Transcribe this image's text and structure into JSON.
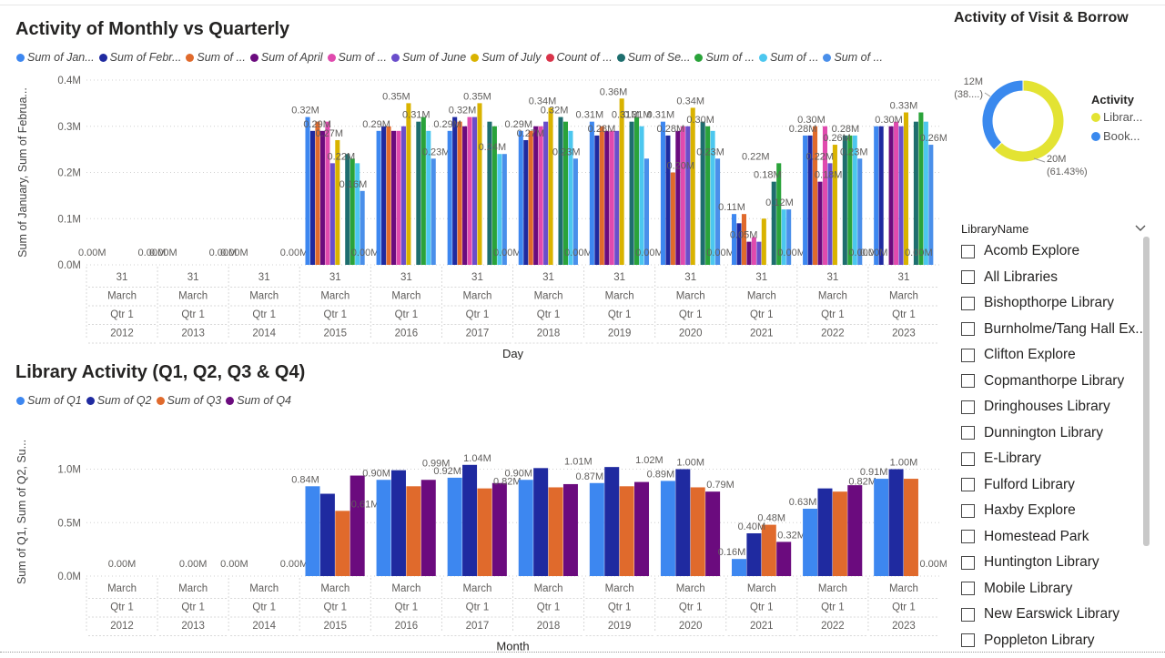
{
  "chart1": {
    "title": "Activity of Monthly vs Quarterly",
    "legend": [
      {
        "name": "Sum of Jan...",
        "color": "#3d87f0"
      },
      {
        "name": "Sum of Febr...",
        "color": "#1f2aa0"
      },
      {
        "name": "Sum of ...",
        "color": "#e06a2c"
      },
      {
        "name": "Sum of April",
        "color": "#6b0b7e"
      },
      {
        "name": "Sum of ...",
        "color": "#e04aae"
      },
      {
        "name": "Sum of June",
        "color": "#6a4ecb"
      },
      {
        "name": "Sum of July",
        "color": "#d9b300"
      },
      {
        "name": "Count of ...",
        "color": "#d9344a"
      },
      {
        "name": "Sum of Se...",
        "color": "#1e6e6e"
      },
      {
        "name": "Sum of ...",
        "color": "#2aa33a"
      },
      {
        "name": "Sum of ...",
        "color": "#4cc7ef"
      },
      {
        "name": "Sum of ...",
        "color": "#4a8fea"
      }
    ],
    "y_axis_title": "Sum of January, Sum of Februa...",
    "x_axis_title": "Day",
    "y_ticks": [
      "0.0M",
      "0.1M",
      "0.2M",
      "0.3M",
      "0.4M"
    ]
  },
  "chart2": {
    "title": "Library Activity (Q1, Q2, Q3 & Q4)",
    "legend": [
      {
        "name": "Sum of Q1",
        "color": "#3d87f0"
      },
      {
        "name": "Sum of Q2",
        "color": "#1f2aa0"
      },
      {
        "name": "Sum of Q3",
        "color": "#e06a2c"
      },
      {
        "name": "Sum of Q4",
        "color": "#6b0b7e"
      }
    ],
    "y_axis_title": "Sum of Q1, Sum of Q2, Su...",
    "x_axis_title": "Month",
    "y_ticks": [
      "0.0M",
      "0.5M",
      "1.0M"
    ]
  },
  "donut": {
    "title": "Activity of Visit & Borrow",
    "legend_title": "Activity",
    "label_blue_value": "12M",
    "label_blue_pct": "(38....)",
    "label_yellow_value": "20M",
    "label_yellow_pct": "(61.43%)",
    "legend": [
      {
        "name": "Librar...",
        "color": "#e3e333"
      },
      {
        "name": "Book...",
        "color": "#3a89ee"
      }
    ]
  },
  "slicer": {
    "title": "LibraryName",
    "items": [
      "Acomb Explore",
      "All Libraries",
      "Bishopthorpe Library",
      "Burnholme/Tang Hall Ex...",
      "Clifton Explore",
      "Copmanthorpe Library",
      "Dringhouses Library",
      "Dunnington Library",
      "E-Library",
      "Fulford Library",
      "Haxby Explore",
      "Homestead Park",
      "Huntington Library",
      "Mobile Library",
      "New Earswick Library",
      "Poppleton Library"
    ]
  },
  "chart_data": [
    {
      "type": "bar",
      "title": "Activity of Monthly vs Quarterly",
      "xlabel": "Day",
      "ylabel": "Sum of January, Sum of Februa...",
      "ylim": [
        0,
        0.4
      ],
      "unit": "M",
      "x_levels": {
        "day": "31",
        "month": "March",
        "quarter": "Qtr 1"
      },
      "categories": [
        "2012",
        "2013",
        "2014",
        "2015",
        "2016",
        "2017",
        "2018",
        "2019",
        "2020",
        "2021",
        "2022",
        "2023"
      ],
      "series": [
        {
          "name": "Sum of Jan...",
          "values": [
            0,
            0,
            0,
            0.32,
            0.29,
            0.29,
            0.29,
            0.31,
            0.31,
            0.11,
            0.28,
            0.3
          ]
        },
        {
          "name": "Sum of Febr...",
          "values": [
            0,
            0,
            0,
            0.29,
            0.3,
            0.32,
            0.27,
            0.28,
            0.28,
            0.09,
            0.28,
            0.3
          ]
        },
        {
          "name": "Sum of ...",
          "values": [
            0,
            0,
            0,
            0.31,
            0.3,
            0.31,
            0.29,
            0.3,
            0.2,
            0.11,
            0.3,
            0.0
          ]
        },
        {
          "name": "Sum of April",
          "values": [
            0,
            0,
            0,
            0.29,
            0.29,
            0.3,
            0.3,
            0.29,
            0.29,
            0.05,
            0.18,
            0.3
          ]
        },
        {
          "name": "Sum of ...",
          "values": [
            0,
            0,
            0,
            0.31,
            0.29,
            0.32,
            0.3,
            0.29,
            0.3,
            0.06,
            0.3,
            0.31
          ]
        },
        {
          "name": "Sum of June",
          "values": [
            0,
            0,
            0,
            0.22,
            0.3,
            0.32,
            0.31,
            0.29,
            0.3,
            0.05,
            0.22,
            0.3
          ]
        },
        {
          "name": "Sum of July",
          "values": [
            0,
            0,
            0,
            0.27,
            0.35,
            0.35,
            0.34,
            0.36,
            0.34,
            0.1,
            0.26,
            0.33
          ]
        },
        {
          "name": "Count of ...",
          "values": [
            0,
            0,
            0,
            0,
            0,
            0,
            0,
            0,
            0,
            0,
            0,
            0
          ]
        },
        {
          "name": "Sum of Se...",
          "values": [
            0,
            0,
            0,
            0.24,
            0.31,
            0.31,
            0.32,
            0.31,
            0.31,
            0.18,
            0.28,
            0.31
          ]
        },
        {
          "name": "Sum of ...",
          "values": [
            0,
            0,
            0,
            0.23,
            0.32,
            0.3,
            0.31,
            0.32,
            0.3,
            0.22,
            0.28,
            0.33
          ]
        },
        {
          "name": "Sum of ...",
          "values": [
            0,
            0,
            0,
            0.22,
            0.29,
            0.24,
            0.29,
            0.3,
            0.29,
            0.12,
            0.28,
            0.31
          ]
        },
        {
          "name": "Sum of ...",
          "values": [
            0,
            0,
            0,
            0.16,
            0.23,
            0.24,
            0.23,
            0.23,
            0.23,
            0.12,
            0.23,
            0.26
          ]
        }
      ],
      "data_labels": [
        {
          "cat": "2012",
          "text": "0.00M"
        },
        {
          "cat": "2012",
          "text": "0.00M"
        },
        {
          "cat": "2013",
          "text": "0.00M"
        },
        {
          "cat": "2013",
          "text": "0.00M"
        },
        {
          "cat": "2014",
          "text": "0.00M"
        },
        {
          "cat": "2014",
          "text": "0.00M"
        },
        {
          "cat": "2015",
          "text": "0.32M"
        },
        {
          "cat": "2015",
          "text": "0.29M"
        },
        {
          "cat": "2015",
          "text": "0.27M"
        },
        {
          "cat": "2015",
          "text": "0.22M"
        },
        {
          "cat": "2015",
          "text": "0.16M"
        },
        {
          "cat": "2015",
          "text": "0.00M"
        },
        {
          "cat": "2016",
          "text": "0.29M"
        },
        {
          "cat": "2016",
          "text": "0.35M"
        },
        {
          "cat": "2016",
          "text": "0.31M"
        },
        {
          "cat": "2016",
          "text": "0.23M"
        },
        {
          "cat": "2017",
          "text": "0.29M"
        },
        {
          "cat": "2017",
          "text": "0.32M"
        },
        {
          "cat": "2017",
          "text": "0.35M"
        },
        {
          "cat": "2017",
          "text": "0.24M"
        },
        {
          "cat": "2017",
          "text": "0.00M"
        },
        {
          "cat": "2018",
          "text": "0.29M"
        },
        {
          "cat": "2018",
          "text": "0.27M"
        },
        {
          "cat": "2018",
          "text": "0.34M"
        },
        {
          "cat": "2018",
          "text": "0.32M"
        },
        {
          "cat": "2018",
          "text": "0.23M"
        },
        {
          "cat": "2018",
          "text": "0.00M"
        },
        {
          "cat": "2019",
          "text": "0.31M"
        },
        {
          "cat": "2019",
          "text": "0.28M"
        },
        {
          "cat": "2019",
          "text": "0.36M"
        },
        {
          "cat": "2019",
          "text": "0.31M"
        },
        {
          "cat": "2019",
          "text": "0.31M"
        },
        {
          "cat": "2019",
          "text": "0.00M"
        },
        {
          "cat": "2020",
          "text": "0.31M"
        },
        {
          "cat": "2020",
          "text": "0.28M"
        },
        {
          "cat": "2020",
          "text": "0.20M"
        },
        {
          "cat": "2020",
          "text": "0.34M"
        },
        {
          "cat": "2020",
          "text": "0.30M"
        },
        {
          "cat": "2020",
          "text": "0.23M"
        },
        {
          "cat": "2020",
          "text": "0.00M"
        },
        {
          "cat": "2021",
          "text": "0.11M"
        },
        {
          "cat": "2021",
          "text": "0.05M"
        },
        {
          "cat": "2021",
          "text": "0.22M"
        },
        {
          "cat": "2021",
          "text": "0.18M"
        },
        {
          "cat": "2021",
          "text": "0.12M"
        },
        {
          "cat": "2021",
          "text": "0.00M"
        },
        {
          "cat": "2022",
          "text": "0.28M"
        },
        {
          "cat": "2022",
          "text": "0.30M"
        },
        {
          "cat": "2022",
          "text": "0.22M"
        },
        {
          "cat": "2022",
          "text": "0.18M"
        },
        {
          "cat": "2022",
          "text": "0.26M"
        },
        {
          "cat": "2022",
          "text": "0.28M"
        },
        {
          "cat": "2022",
          "text": "0.23M"
        },
        {
          "cat": "2022",
          "text": "0.00M"
        },
        {
          "cat": "2023",
          "text": "0.00M"
        },
        {
          "cat": "2023",
          "text": "0.30M"
        },
        {
          "cat": "2023",
          "text": "0.33M"
        },
        {
          "cat": "2023",
          "text": "0.00M"
        },
        {
          "cat": "2023",
          "text": "0.26M"
        }
      ]
    },
    {
      "type": "bar",
      "title": "Library Activity (Q1, Q2, Q3 & Q4)",
      "xlabel": "Month",
      "ylabel": "Sum of Q1, Sum of Q2, Su...",
      "ylim": [
        0,
        1.2
      ],
      "unit": "M",
      "x_levels": {
        "month": "March",
        "quarter": "Qtr 1"
      },
      "categories": [
        "2012",
        "2013",
        "2014",
        "2015",
        "2016",
        "2017",
        "2018",
        "2019",
        "2020",
        "2021",
        "2022",
        "2023"
      ],
      "series": [
        {
          "name": "Sum of Q1",
          "values": [
            0,
            0,
            0,
            0.84,
            0.9,
            0.92,
            0.9,
            0.87,
            0.89,
            0.16,
            0.63,
            0.91
          ]
        },
        {
          "name": "Sum of Q2",
          "values": [
            0,
            0,
            0,
            0.77,
            0.99,
            1.04,
            1.01,
            1.02,
            1.0,
            0.4,
            0.82,
            1.0
          ]
        },
        {
          "name": "Sum of Q3",
          "values": [
            0,
            0,
            0,
            0.61,
            0.84,
            0.82,
            0.83,
            0.84,
            0.83,
            0.48,
            0.79,
            0.91
          ]
        },
        {
          "name": "Sum of Q4",
          "values": [
            0,
            0,
            0,
            0.94,
            0.9,
            0.87,
            0.86,
            0.88,
            0.79,
            0.32,
            0.85,
            0.0
          ]
        }
      ],
      "data_labels": [
        {
          "cat": "2012",
          "text": "0.00M"
        },
        {
          "cat": "2013",
          "text": "0.00M"
        },
        {
          "cat": "2014",
          "text": "0.00M"
        },
        {
          "cat": "2014",
          "text": "0.00M"
        },
        {
          "cat": "2015",
          "text": "0.84M"
        },
        {
          "cat": "2015",
          "text": "0.61M"
        },
        {
          "cat": "2016",
          "text": "0.90M"
        },
        {
          "cat": "2016",
          "text": "0.99M"
        },
        {
          "cat": "2017",
          "text": "0.92M"
        },
        {
          "cat": "2017",
          "text": "1.04M"
        },
        {
          "cat": "2017",
          "text": "0.82M"
        },
        {
          "cat": "2018",
          "text": "0.90M"
        },
        {
          "cat": "2018",
          "text": "1.01M"
        },
        {
          "cat": "2019",
          "text": "0.87M"
        },
        {
          "cat": "2019",
          "text": "1.02M"
        },
        {
          "cat": "2020",
          "text": "0.89M"
        },
        {
          "cat": "2020",
          "text": "1.00M"
        },
        {
          "cat": "2020",
          "text": "0.79M"
        },
        {
          "cat": "2021",
          "text": "0.16M"
        },
        {
          "cat": "2021",
          "text": "0.40M"
        },
        {
          "cat": "2021",
          "text": "0.48M"
        },
        {
          "cat": "2021",
          "text": "0.32M"
        },
        {
          "cat": "2022",
          "text": "0.63M"
        },
        {
          "cat": "2022",
          "text": "0.82M"
        },
        {
          "cat": "2023",
          "text": "0.91M"
        },
        {
          "cat": "2023",
          "text": "1.00M"
        },
        {
          "cat": "2023",
          "text": "0.00M"
        }
      ]
    },
    {
      "type": "pie",
      "title": "Activity of Visit & Borrow",
      "categories": [
        "Librar...",
        "Book..."
      ],
      "values": [
        20,
        12
      ],
      "labels": [
        "20M (61.43%)",
        "12M (38....)"
      ]
    }
  ]
}
